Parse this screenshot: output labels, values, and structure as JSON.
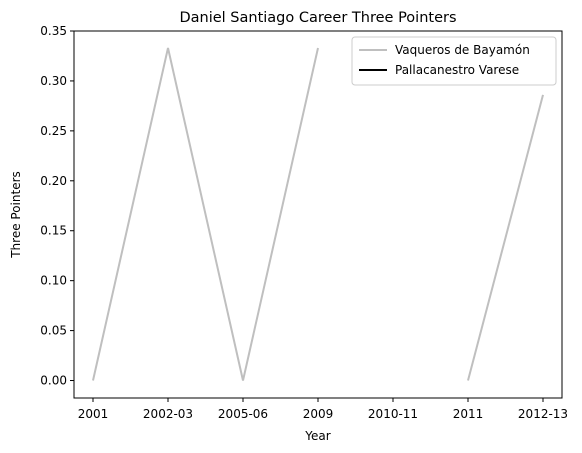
{
  "chart_data": {
    "type": "line",
    "title": "Daniel Santiago Career Three Pointers",
    "xlabel": "Year",
    "ylabel": "Three Pointers",
    "categories": [
      "2001",
      "2002-03",
      "2005-06",
      "2009",
      "2010-11",
      "2011",
      "2012-13"
    ],
    "ylim": [
      -0.0175,
      0.35
    ],
    "yticks": [
      0.0,
      0.05,
      0.1,
      0.15,
      0.2,
      0.25,
      0.3,
      0.35
    ],
    "ytick_labels": [
      "0.00",
      "0.05",
      "0.10",
      "0.15",
      "0.20",
      "0.25",
      "0.30",
      "0.35"
    ],
    "grid": false,
    "legend_position": "top-right",
    "series": [
      {
        "name": "Vaqueros de Bayamón",
        "color": "#bfbfbf",
        "values": [
          0.0,
          0.333,
          0.0,
          0.333,
          null,
          0.0,
          0.286
        ]
      },
      {
        "name": "Pallacanestro Varese",
        "color": "#000000",
        "values": [
          null,
          null,
          null,
          null,
          null,
          null,
          null
        ]
      }
    ]
  }
}
